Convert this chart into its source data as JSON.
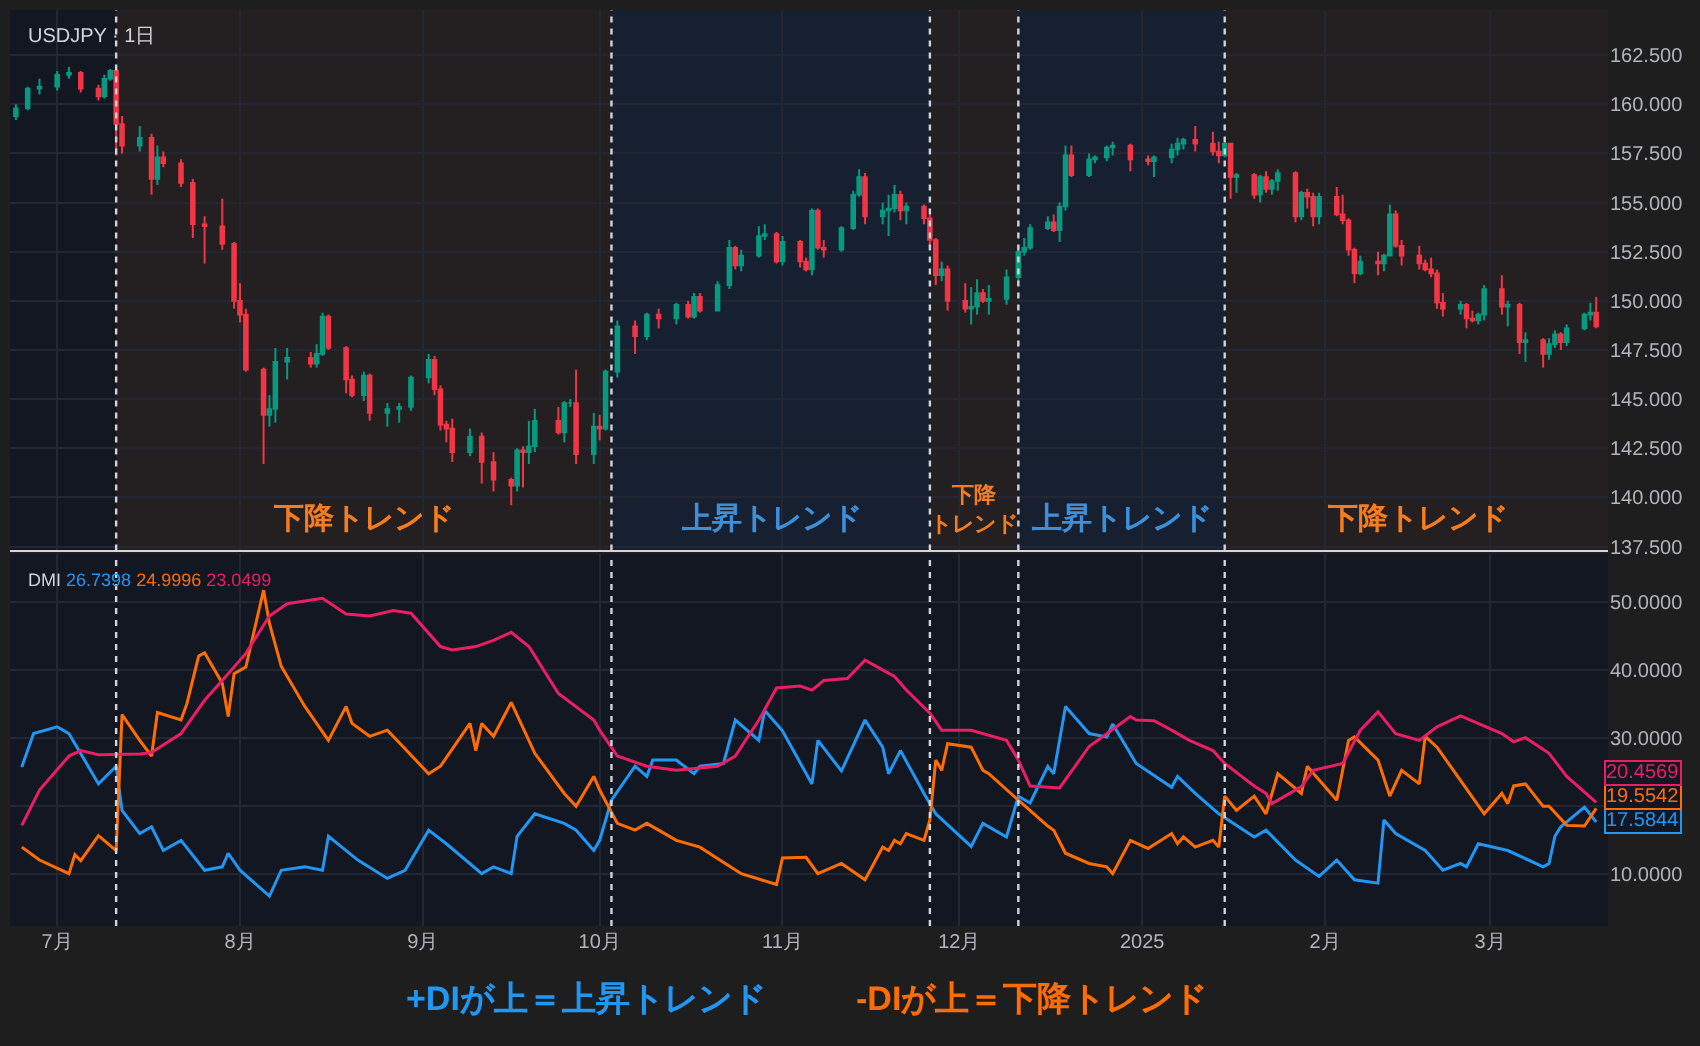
{
  "chart_data": [
    {
      "type": "candlestick",
      "title": "USDJPY · 1日",
      "tick_labels": "y",
      "grid": true,
      "colors": [
        "#089981",
        "#089981",
        "#089981",
        "#089981",
        "#089981",
        "#f23645",
        "#f23645",
        "#089981",
        "#089981",
        "#f23645",
        "#f23645",
        "#089981",
        "#f23645",
        "#089981",
        "#f23645",
        "#f23645",
        "#f23645",
        "#f23645",
        "#f23645",
        "#f23645",
        "#f23645",
        "#f23645",
        "#f23645",
        "#089981",
        "#089981",
        "#089981",
        "#f23645",
        "#089981",
        "#089981",
        "#f23645",
        "#f23645",
        "#f23645",
        "#089981",
        "#f23645",
        "#089981",
        "#089981",
        "#089981",
        "#089981",
        "#f23645",
        "#f23645",
        "#f23645",
        "#f23645",
        "#089981",
        "#f23645",
        "#f23645",
        "#f23645",
        "#089981",
        "#f23645",
        "#089981",
        "#089981",
        "#f23645",
        "#089981",
        "#089981",
        "#f23645",
        "#089981",
        "#f23645",
        "#089981",
        "#089981",
        "#f23645",
        "#089981",
        "#f23645",
        "#089981",
        "#f23645",
        "#089981",
        "#f23645",
        "#089981",
        "#089981",
        "#f23645",
        "#089981",
        "#089981",
        "#089981",
        "#f23645",
        "#089981",
        "#f23645",
        "#f23645",
        "#089981",
        "#f23645",
        "#f23645",
        "#089981",
        "#089981",
        "#089981",
        "#f23645",
        "#089981",
        "#089981",
        "#089981",
        "#f23645",
        "#089981",
        "#f23645",
        "#f23645",
        "#f23645",
        "#089981",
        "#f23645",
        "#f23645",
        "#089981",
        "#089981",
        "#f23645",
        "#089981",
        "#089981",
        "#089981",
        "#089981",
        "#089981",
        "#089981",
        "#f23645",
        "#089981",
        "#089981",
        "#f23645",
        "#089981",
        "#089981",
        "#089981",
        "#089981",
        "#f23645",
        "#f23645",
        "#089981",
        "#089981",
        "#089981",
        "#089981",
        "#f23645",
        "#f23645",
        "#f23645",
        "#089981",
        "#f23645",
        "#089981",
        "#f23645",
        "#089981",
        "#f23645",
        "#089981",
        "#089981",
        "#f23645",
        "#089981",
        "#f23645",
        "#f23645",
        "#089981",
        "#f23645",
        "#f23645",
        "#f23645",
        "#f23645",
        "#089981",
        "#f23645",
        "#089981",
        "#089981",
        "#f23645",
        "#f23645",
        "#f23645",
        "#f23645",
        "#f23645",
        "#f23645",
        "#f23645",
        "#089981",
        "#f23645",
        "#f23645",
        "#089981",
        "#089981",
        "#f23645",
        "#089981",
        "#f23645",
        "#089981",
        "#f23645",
        "#089981",
        "#089981",
        "#f23645",
        "#089981",
        "#089981",
        "#089981",
        "#f23645"
      ],
      "xlim": [
        "2024-06-23",
        "2025-03-21"
      ],
      "xticks": [
        {
          "value": "2024-07-01",
          "label": null
        },
        {
          "value": "2024-08-01",
          "label": null
        },
        {
          "value": "2024-09-01",
          "label": null
        },
        {
          "value": "2024-10-01",
          "label": null
        },
        {
          "value": "2024-11-01",
          "label": null
        },
        {
          "value": "2024-12-01",
          "label": null
        },
        {
          "value": "2025-01-01",
          "label": null
        },
        {
          "value": "2025-02-01",
          "label": null
        },
        {
          "value": "2025-03-01",
          "label": null
        }
      ],
      "ylim": [
        137.3,
        164.8
      ],
      "yticks": [
        {
          "value": 137.5,
          "label": "137.500"
        },
        {
          "value": 140,
          "label": "140.000"
        },
        {
          "value": 142.5,
          "label": "142.500"
        },
        {
          "value": 145,
          "label": "145.000"
        },
        {
          "value": 147.5,
          "label": "147.500"
        },
        {
          "value": 150,
          "label": "150.000"
        },
        {
          "value": 152.5,
          "label": "152.500"
        },
        {
          "value": 155,
          "label": "155.000"
        },
        {
          "value": 157.5,
          "label": "157.500"
        },
        {
          "value": 160,
          "label": "160.000"
        },
        {
          "value": 162.5,
          "label": "162.500"
        }
      ],
      "x": [
        "2024-06-24",
        "2024-06-26",
        "2024-06-28",
        "2024-07-01",
        "2024-07-03",
        "2024-07-05",
        "2024-07-08",
        "2024-07-09",
        "2024-07-10",
        "2024-07-11",
        "2024-07-12",
        "2024-07-15",
        "2024-07-17",
        "2024-07-18",
        "2024-07-19",
        "2024-07-22",
        "2024-07-24",
        "2024-07-26",
        "2024-07-29",
        "2024-07-31",
        "2024-08-01",
        "2024-08-02",
        "2024-08-05",
        "2024-08-06",
        "2024-08-07",
        "2024-08-09",
        "2024-08-13",
        "2024-08-14",
        "2024-08-15",
        "2024-08-16",
        "2024-08-19",
        "2024-08-20",
        "2024-08-22",
        "2024-08-23",
        "2024-08-26",
        "2024-08-28",
        "2024-08-30",
        "2024-09-02",
        "2024-09-03",
        "2024-09-04",
        "2024-09-05",
        "2024-09-06",
        "2024-09-09",
        "2024-09-11",
        "2024-09-13",
        "2024-09-16",
        "2024-09-17",
        "2024-09-18",
        "2024-09-19",
        "2024-09-20",
        "2024-09-24",
        "2024-09-25",
        "2024-09-26",
        "2024-09-27",
        "2024-09-30",
        "2024-10-01",
        "2024-10-02",
        "2024-10-04",
        "2024-10-07",
        "2024-10-09",
        "2024-10-11",
        "2024-10-14",
        "2024-10-16",
        "2024-10-17",
        "2024-10-18",
        "2024-10-21",
        "2024-10-23",
        "2024-10-24",
        "2024-10-25",
        "2024-10-28",
        "2024-10-29",
        "2024-10-31",
        "2024-11-01",
        "2024-11-04",
        "2024-11-05",
        "2024-11-06",
        "2024-11-07",
        "2024-11-08",
        "2024-11-11",
        "2024-11-13",
        "2024-11-14",
        "2024-11-15",
        "2024-11-18",
        "2024-11-19",
        "2024-11-20",
        "2024-11-21",
        "2024-11-22",
        "2024-11-25",
        "2024-11-26",
        "2024-11-27",
        "2024-11-28",
        "2024-11-29",
        "2024-12-02",
        "2024-12-03",
        "2024-12-04",
        "2024-12-05",
        "2024-12-06",
        "2024-12-09",
        "2024-12-11",
        "2024-12-12",
        "2024-12-13",
        "2024-12-16",
        "2024-12-17",
        "2024-12-18",
        "2024-12-19",
        "2024-12-20",
        "2024-12-23",
        "2024-12-24",
        "2024-12-26",
        "2024-12-27",
        "2024-12-30",
        "2025-01-02",
        "2025-01-03",
        "2025-01-06",
        "2025-01-07",
        "2025-01-08",
        "2025-01-10",
        "2025-01-13",
        "2025-01-14",
        "2025-01-15",
        "2025-01-16",
        "2025-01-17",
        "2025-01-20",
        "2025-01-21",
        "2025-01-22",
        "2025-01-23",
        "2025-01-24",
        "2025-01-27",
        "2025-01-28",
        "2025-01-29",
        "2025-01-30",
        "2025-01-31",
        "2025-02-03",
        "2025-02-04",
        "2025-02-05",
        "2025-02-06",
        "2025-02-07",
        "2025-02-10",
        "2025-02-11",
        "2025-02-12",
        "2025-02-13",
        "2025-02-14",
        "2025-02-17",
        "2025-02-18",
        "2025-02-19",
        "2025-02-20",
        "2025-02-21",
        "2025-02-24",
        "2025-02-25",
        "2025-02-26",
        "2025-02-27",
        "2025-02-28",
        "2025-03-03",
        "2025-03-04",
        "2025-03-06",
        "2025-03-07",
        "2025-03-10",
        "2025-03-11",
        "2025-03-12",
        "2025-03-13",
        "2025-03-14",
        "2025-03-17",
        "2025-03-18",
        "2025-03-19"
      ],
      "ohlc": [
        [
          159.4,
          160.0,
          159.2,
          159.8
        ],
        [
          159.8,
          160.9,
          159.7,
          160.8
        ],
        [
          160.8,
          161.3,
          160.5,
          160.9
        ],
        [
          160.9,
          161.7,
          160.7,
          161.5
        ],
        [
          161.5,
          161.9,
          161.3,
          161.6
        ],
        [
          161.6,
          161.7,
          160.6,
          160.8
        ],
        [
          160.8,
          161.0,
          160.2,
          160.4
        ],
        [
          160.4,
          161.5,
          160.3,
          161.3
        ],
        [
          161.3,
          161.8,
          161.2,
          161.7
        ],
        [
          161.7,
          161.8,
          157.4,
          159.0
        ],
        [
          159.0,
          159.4,
          157.5,
          157.9
        ],
        [
          157.9,
          158.9,
          157.6,
          158.3
        ],
        [
          158.3,
          158.5,
          155.4,
          156.2
        ],
        [
          156.2,
          157.9,
          155.9,
          157.3
        ],
        [
          157.3,
          157.6,
          156.8,
          157.0
        ],
        [
          157.0,
          157.2,
          155.8,
          156.0
        ],
        [
          156.0,
          156.2,
          153.2,
          153.9
        ],
        [
          153.9,
          154.3,
          151.9,
          153.8
        ],
        [
          153.8,
          155.2,
          152.6,
          152.9
        ],
        [
          152.9,
          153.0,
          149.6,
          150.0
        ],
        [
          150.0,
          150.9,
          148.9,
          149.3
        ],
        [
          149.3,
          149.6,
          146.4,
          146.5
        ],
        [
          146.5,
          146.6,
          141.7,
          144.2
        ],
        [
          144.2,
          145.2,
          143.6,
          144.5
        ],
        [
          144.5,
          147.6,
          143.8,
          146.9
        ],
        [
          146.9,
          147.6,
          146.0,
          147.1
        ],
        [
          147.1,
          147.4,
          146.6,
          146.8
        ],
        [
          146.8,
          147.8,
          146.6,
          147.3
        ],
        [
          147.3,
          149.4,
          147.2,
          149.2
        ],
        [
          149.2,
          149.3,
          147.5,
          147.6
        ],
        [
          147.6,
          147.7,
          145.3,
          146.0
        ],
        [
          146.0,
          146.2,
          145.1,
          145.2
        ],
        [
          145.2,
          146.4,
          144.9,
          146.2
        ],
        [
          146.2,
          146.3,
          143.9,
          144.3
        ],
        [
          144.3,
          144.8,
          143.6,
          144.5
        ],
        [
          144.5,
          144.8,
          143.8,
          144.6
        ],
        [
          144.6,
          146.2,
          144.4,
          146.1
        ],
        [
          146.1,
          147.3,
          145.8,
          147.0
        ],
        [
          147.0,
          147.2,
          145.2,
          145.5
        ],
        [
          145.5,
          145.7,
          143.4,
          143.7
        ],
        [
          143.7,
          143.9,
          142.8,
          143.5
        ],
        [
          143.5,
          144.0,
          141.8,
          142.3
        ],
        [
          142.3,
          143.5,
          142.1,
          143.1
        ],
        [
          143.1,
          143.3,
          140.7,
          141.8
        ],
        [
          141.8,
          142.3,
          140.3,
          140.9
        ],
        [
          140.9,
          141.0,
          139.6,
          140.6
        ],
        [
          140.6,
          142.5,
          140.3,
          142.4
        ],
        [
          142.4,
          142.6,
          140.5,
          142.3
        ],
        [
          142.3,
          143.9,
          141.7,
          142.6
        ],
        [
          142.6,
          144.5,
          142.3,
          143.9
        ],
        [
          143.9,
          144.6,
          143.2,
          143.3
        ],
        [
          143.3,
          144.9,
          142.8,
          144.8
        ],
        [
          144.8,
          145.0,
          144.6,
          144.8
        ],
        [
          144.8,
          146.5,
          141.7,
          142.2
        ],
        [
          142.2,
          144.3,
          141.7,
          143.6
        ],
        [
          143.6,
          144.2,
          142.9,
          143.5
        ],
        [
          143.5,
          146.5,
          143.4,
          146.4
        ],
        [
          146.4,
          149.0,
          146.1,
          148.7
        ],
        [
          148.7,
          149.0,
          147.3,
          148.2
        ],
        [
          148.2,
          149.4,
          148.0,
          149.3
        ],
        [
          149.3,
          149.6,
          148.6,
          149.1
        ],
        [
          149.1,
          149.9,
          148.8,
          149.8
        ],
        [
          149.8,
          150.0,
          149.1,
          149.2
        ],
        [
          149.2,
          150.4,
          149.1,
          150.2
        ],
        [
          150.2,
          150.4,
          149.4,
          149.5
        ],
        [
          149.5,
          151.0,
          149.5,
          150.8
        ],
        [
          150.8,
          153.1,
          150.6,
          152.7
        ],
        [
          152.7,
          152.8,
          151.6,
          151.8
        ],
        [
          151.8,
          152.6,
          151.5,
          152.3
        ],
        [
          152.3,
          153.8,
          152.2,
          153.3
        ],
        [
          153.3,
          153.9,
          153.1,
          153.4
        ],
        [
          153.4,
          153.5,
          151.9,
          152.0
        ],
        [
          152.0,
          153.3,
          151.8,
          153.0
        ],
        [
          153.0,
          153.1,
          151.7,
          152.0
        ],
        [
          152.0,
          152.2,
          151.5,
          151.6
        ],
        [
          151.6,
          154.7,
          151.3,
          154.6
        ],
        [
          154.6,
          154.7,
          152.6,
          152.7
        ],
        [
          152.7,
          153.1,
          152.2,
          152.6
        ],
        [
          152.6,
          153.8,
          152.5,
          153.7
        ],
        [
          153.7,
          155.6,
          153.6,
          155.4
        ],
        [
          155.4,
          156.7,
          155.3,
          156.3
        ],
        [
          156.3,
          156.5,
          153.9,
          154.3
        ],
        [
          154.3,
          155.0,
          153.9,
          154.6
        ],
        [
          154.6,
          155.4,
          153.3,
          154.7
        ],
        [
          154.7,
          155.9,
          154.5,
          155.4
        ],
        [
          155.4,
          155.6,
          154.1,
          154.6
        ],
        [
          154.6,
          155.0,
          153.9,
          154.8
        ],
        [
          154.8,
          154.9,
          153.9,
          154.2
        ],
        [
          154.2,
          154.4,
          152.7,
          153.1
        ],
        [
          153.1,
          153.2,
          150.8,
          151.3
        ],
        [
          151.3,
          152.0,
          151.0,
          151.6
        ],
        [
          151.6,
          151.8,
          149.5,
          150.0
        ],
        [
          150.0,
          150.9,
          149.4,
          149.6
        ],
        [
          149.6,
          150.7,
          148.8,
          149.7
        ],
        [
          149.7,
          151.1,
          149.3,
          150.4
        ],
        [
          150.4,
          150.6,
          149.9,
          150.0
        ],
        [
          150.0,
          150.8,
          149.3,
          150.1
        ],
        [
          150.1,
          151.6,
          149.8,
          151.2
        ],
        [
          151.2,
          152.6,
          150.9,
          152.5
        ],
        [
          152.5,
          153.2,
          152.3,
          152.7
        ],
        [
          152.7,
          153.9,
          152.6,
          153.7
        ],
        [
          153.7,
          154.3,
          153.6,
          154.0
        ],
        [
          154.0,
          154.4,
          153.5,
          153.6
        ],
        [
          153.6,
          155.0,
          153.0,
          154.8
        ],
        [
          154.8,
          157.9,
          154.6,
          157.4
        ],
        [
          157.4,
          157.9,
          156.3,
          156.4
        ],
        [
          156.4,
          157.5,
          156.3,
          157.2
        ],
        [
          157.2,
          157.4,
          157.0,
          157.3
        ],
        [
          157.3,
          157.9,
          157.1,
          157.8
        ],
        [
          157.8,
          158.1,
          157.4,
          157.9
        ],
        [
          157.9,
          158.0,
          156.6,
          157.2
        ],
        [
          157.2,
          157.4,
          156.9,
          157.1
        ],
        [
          157.1,
          157.4,
          156.3,
          157.3
        ],
        [
          157.3,
          158.0,
          157.0,
          157.7
        ],
        [
          157.7,
          158.3,
          157.4,
          158.0
        ],
        [
          158.0,
          158.3,
          157.7,
          158.2
        ],
        [
          158.2,
          158.9,
          157.6,
          158.0
        ],
        [
          158.0,
          158.6,
          157.4,
          157.6
        ],
        [
          157.6,
          158.1,
          157.0,
          157.4
        ],
        [
          157.4,
          158.0,
          157.3,
          158.0
        ],
        [
          158.0,
          158.0,
          155.2,
          156.3
        ],
        [
          156.3,
          156.5,
          155.5,
          156.4
        ],
        [
          156.4,
          156.5,
          155.2,
          155.4
        ],
        [
          155.4,
          156.4,
          155.0,
          156.3
        ],
        [
          156.3,
          156.6,
          155.5,
          155.7
        ],
        [
          155.7,
          156.2,
          155.4,
          156.1
        ],
        [
          156.1,
          156.7,
          155.6,
          156.5
        ],
        [
          156.5,
          156.6,
          154.0,
          154.3
        ],
        [
          154.3,
          155.6,
          154.1,
          155.5
        ],
        [
          155.5,
          155.7,
          154.7,
          155.3
        ],
        [
          155.3,
          155.5,
          153.8,
          154.3
        ],
        [
          154.3,
          155.5,
          153.9,
          155.3
        ],
        [
          155.3,
          155.8,
          154.3,
          154.4
        ],
        [
          154.4,
          155.4,
          153.9,
          154.1
        ],
        [
          154.1,
          154.2,
          152.3,
          152.6
        ],
        [
          152.6,
          152.7,
          150.9,
          151.4
        ],
        [
          151.4,
          152.3,
          151.3,
          152.0
        ],
        [
          152.0,
          152.5,
          151.3,
          151.9
        ],
        [
          151.9,
          152.4,
          151.5,
          152.3
        ],
        [
          152.3,
          154.9,
          152.3,
          154.4
        ],
        [
          154.4,
          154.6,
          152.7,
          152.8
        ],
        [
          152.8,
          153.1,
          151.8,
          152.3
        ],
        [
          152.3,
          152.8,
          151.6,
          151.9
        ],
        [
          151.9,
          152.1,
          151.5,
          151.6
        ],
        [
          151.6,
          152.2,
          151.2,
          151.4
        ],
        [
          151.4,
          151.6,
          149.6,
          149.9
        ],
        [
          149.9,
          150.4,
          149.2,
          149.6
        ],
        [
          149.6,
          150.0,
          149.3,
          149.8
        ],
        [
          149.8,
          149.9,
          148.6,
          149.1
        ],
        [
          149.1,
          149.5,
          148.9,
          149.0
        ],
        [
          149.0,
          149.4,
          148.8,
          149.3
        ],
        [
          149.3,
          150.8,
          149.0,
          150.6
        ],
        [
          150.6,
          151.3,
          149.3,
          149.7
        ],
        [
          149.7,
          150.0,
          148.7,
          149.8
        ],
        [
          149.8,
          149.9,
          147.3,
          147.9
        ],
        [
          147.9,
          148.4,
          146.9,
          148.0
        ],
        [
          148.0,
          148.1,
          146.6,
          147.3
        ],
        [
          147.3,
          148.1,
          147.0,
          147.8
        ],
        [
          147.8,
          148.5,
          147.6,
          148.3
        ],
        [
          148.3,
          148.4,
          147.5,
          147.9
        ],
        [
          147.9,
          148.8,
          147.7,
          148.6
        ],
        [
          148.6,
          149.4,
          148.5,
          149.3
        ],
        [
          149.3,
          149.9,
          149.0,
          149.4
        ],
        [
          149.4,
          150.2,
          148.6,
          148.7
        ]
      ],
      "ref_lines": [
        {
          "axis": "x",
          "value": "2024-07-11",
          "color": "#d1d4dc",
          "line_style": "dotted"
        },
        {
          "axis": "x",
          "value": "2024-10-03",
          "color": "#d1d4dc",
          "line_style": "dotted"
        },
        {
          "axis": "x",
          "value": "2024-11-26",
          "color": "#d1d4dc",
          "line_style": "dotted"
        },
        {
          "axis": "x",
          "value": "2024-12-11",
          "color": "#d1d4dc",
          "line_style": "dotted"
        },
        {
          "axis": "x",
          "value": "2025-01-15",
          "color": "#d1d4dc",
          "line_style": "dotted"
        }
      ],
      "bands": [
        {
          "axis": "x",
          "from": "2024-07-11",
          "to": "2024-10-03",
          "label": "下降トレンド",
          "color": "#f57c1f"
        },
        {
          "axis": "x",
          "from": "2024-10-03",
          "to": "2024-11-26",
          "label": "上昇トレンド",
          "color": "#3d8fd9"
        },
        {
          "axis": "x",
          "from": "2024-11-26",
          "to": "2024-12-11",
          "label": "下降トレンド",
          "color": "#f57c1f"
        },
        {
          "axis": "x",
          "from": "2024-12-11",
          "to": "2025-01-15",
          "label": "上昇トレンド",
          "color": "#3d8fd9"
        },
        {
          "axis": "x",
          "from": "2025-01-15",
          "to": "2025-03-21",
          "label": "下降トレンド",
          "color": "#f57c1f"
        }
      ]
    },
    {
      "type": "line",
      "title": "DMI",
      "grid": true,
      "marker": "none",
      "line_style": "solid",
      "xlim": [
        "2024-06-23",
        "2025-03-21"
      ],
      "xticks": [
        {
          "value": "2024-07-01",
          "label": "7月"
        },
        {
          "value": "2024-08-01",
          "label": "8月"
        },
        {
          "value": "2024-09-01",
          "label": "9月"
        },
        {
          "value": "2024-10-01",
          "label": "10月"
        },
        {
          "value": "2024-11-01",
          "label": "11月"
        },
        {
          "value": "2024-12-01",
          "label": "12月"
        },
        {
          "value": "2025-01-01",
          "label": "2025"
        },
        {
          "value": "2025-02-01",
          "label": "2月"
        },
        {
          "value": "2025-03-01",
          "label": "3月"
        }
      ],
      "ylim": [
        2.3,
        57.0
      ],
      "yticks": [
        {
          "value": 10,
          "label": "10.0000"
        },
        {
          "value": 20,
          "label": null
        },
        {
          "value": 30,
          "label": "30.0000"
        },
        {
          "value": 40,
          "label": "40.0000"
        },
        {
          "value": 50,
          "label": "50.0000"
        }
      ],
      "series": [
        {
          "color": "#2196f3",
          "x": [
            "2024-06-25",
            "2024-06-27",
            "2024-07-01",
            "2024-07-03",
            "2024-07-07",
            "2024-07-08",
            "2024-07-11",
            "2024-07-12",
            "2024-07-15",
            "2024-07-17",
            "2024-07-19",
            "2024-07-22",
            "2024-07-26",
            "2024-07-29",
            "2024-07-30",
            "2024-08-01",
            "2024-08-06",
            "2024-08-08",
            "2024-08-12",
            "2024-08-15",
            "2024-08-16",
            "2024-08-21",
            "2024-08-26",
            "2024-08-29",
            "2024-09-02",
            "2024-09-05",
            "2024-09-11",
            "2024-09-13",
            "2024-09-16",
            "2024-09-17",
            "2024-09-20",
            "2024-09-25",
            "2024-09-27",
            "2024-09-30",
            "2024-10-01",
            "2024-10-03",
            "2024-10-07",
            "2024-10-09",
            "2024-10-10",
            "2024-10-14",
            "2024-10-17",
            "2024-10-18",
            "2024-10-22",
            "2024-10-24",
            "2024-10-28",
            "2024-10-29",
            "2024-11-01",
            "2024-11-06",
            "2024-11-07",
            "2024-11-11",
            "2024-11-15",
            "2024-11-18",
            "2024-11-19",
            "2024-11-21",
            "2024-11-25",
            "2024-11-27",
            "2024-12-03",
            "2024-12-05",
            "2024-12-09",
            "2024-12-11",
            "2024-12-13",
            "2024-12-16",
            "2024-12-17",
            "2024-12-19",
            "2024-12-23",
            "2024-12-26",
            "2024-12-27",
            "2024-12-31",
            "2025-01-06",
            "2025-01-07",
            "2025-01-10",
            "2025-01-14",
            "2025-01-20",
            "2025-01-22",
            "2025-01-27",
            "2025-01-31",
            "2025-02-03",
            "2025-02-06",
            "2025-02-10",
            "2025-02-11",
            "2025-02-13",
            "2025-02-18",
            "2025-02-21",
            "2025-02-24",
            "2025-02-25",
            "2025-02-27",
            "2025-03-04",
            "2025-03-10",
            "2025-03-11",
            "2025-03-12",
            "2025-03-13",
            "2025-03-17",
            "2025-03-19"
          ],
          "values": [
            25.7,
            30.6,
            31.6,
            30.6,
            24.7,
            23.2,
            25.8,
            19.3,
            15.9,
            16.9,
            13.4,
            14.9,
            10.5,
            11.0,
            13.0,
            10.5,
            6.7,
            10.5,
            11.0,
            10.5,
            15.5,
            12.0,
            9.3,
            10.5,
            16.4,
            14.4,
            10.0,
            11.0,
            10.0,
            15.5,
            18.8,
            17.4,
            16.4,
            13.4,
            14.9,
            20.8,
            25.8,
            24.3,
            26.7,
            26.7,
            24.7,
            25.8,
            26.2,
            32.6,
            29.6,
            34.0,
            31.0,
            23.2,
            29.6,
            25.1,
            32.6,
            28.6,
            24.7,
            28.1,
            21.8,
            18.8,
            14.0,
            17.4,
            15.4,
            21.4,
            20.4,
            25.8,
            24.7,
            34.6,
            30.6,
            30.1,
            32.0,
            26.2,
            22.7,
            24.3,
            21.8,
            18.8,
            15.4,
            16.4,
            12.0,
            9.6,
            12.0,
            9.1,
            8.6,
            17.9,
            15.9,
            13.4,
            10.5,
            11.5,
            11.0,
            14.4,
            13.4,
            11.0,
            11.5,
            15.5,
            16.9,
            19.8,
            17.6
          ]
        },
        {
          "color": "#ff6d00",
          "x": [
            "2024-06-25",
            "2024-06-28",
            "2024-07-03",
            "2024-07-04",
            "2024-07-05",
            "2024-07-08",
            "2024-07-11",
            "2024-07-12",
            "2024-07-15",
            "2024-07-17",
            "2024-07-18",
            "2024-07-22",
            "2024-07-23",
            "2024-07-25",
            "2024-07-26",
            "2024-07-29",
            "2024-07-30",
            "2024-07-31",
            "2024-08-02",
            "2024-08-05",
            "2024-08-06",
            "2024-08-08",
            "2024-08-12",
            "2024-08-16",
            "2024-08-19",
            "2024-08-20",
            "2024-08-23",
            "2024-08-26",
            "2024-09-02",
            "2024-09-04",
            "2024-09-09",
            "2024-09-10",
            "2024-09-11",
            "2024-09-13",
            "2024-09-16",
            "2024-09-20",
            "2024-09-25",
            "2024-09-27",
            "2024-09-30",
            "2024-10-01",
            "2024-10-04",
            "2024-10-07",
            "2024-10-09",
            "2024-10-14",
            "2024-10-18",
            "2024-10-25",
            "2024-10-31",
            "2024-11-01",
            "2024-11-05",
            "2024-11-07",
            "2024-11-11",
            "2024-11-15",
            "2024-11-18",
            "2024-11-19",
            "2024-11-20",
            "2024-11-21",
            "2024-11-22",
            "2024-11-25",
            "2024-11-26",
            "2024-11-27",
            "2024-11-28",
            "2024-11-29",
            "2024-12-03",
            "2024-12-05",
            "2024-12-06",
            "2024-12-11",
            "2024-12-16",
            "2024-12-17",
            "2024-12-19",
            "2024-12-23",
            "2024-12-26",
            "2024-12-27",
            "2024-12-30",
            "2025-01-02",
            "2025-01-06",
            "2025-01-07",
            "2025-01-08",
            "2025-01-10",
            "2025-01-13",
            "2025-01-14",
            "2025-01-15",
            "2025-01-17",
            "2025-01-20",
            "2025-01-22",
            "2025-01-24",
            "2025-01-28",
            "2025-01-29",
            "2025-02-03",
            "2025-02-05",
            "2025-02-06",
            "2025-02-10",
            "2025-02-12",
            "2025-02-14",
            "2025-02-17",
            "2025-02-18",
            "2025-02-20",
            "2025-02-28",
            "2025-03-03",
            "2025-03-04",
            "2025-03-05",
            "2025-03-07",
            "2025-03-10",
            "2025-03-11",
            "2025-03-14",
            "2025-03-17",
            "2025-03-19"
          ],
          "values": [
            13.9,
            12.0,
            10.0,
            12.8,
            11.9,
            15.6,
            13.4,
            33.4,
            29.6,
            27.3,
            33.7,
            32.6,
            35.0,
            42.0,
            42.5,
            38.0,
            33.1,
            39.4,
            40.4,
            51.7,
            46.8,
            40.5,
            34.6,
            29.6,
            34.6,
            32.1,
            30.2,
            31.1,
            24.7,
            25.8,
            32.1,
            28.1,
            32.1,
            30.2,
            35.2,
            27.7,
            21.8,
            19.9,
            24.3,
            22.3,
            17.4,
            16.4,
            17.4,
            14.9,
            13.9,
            10.0,
            8.4,
            12.3,
            12.4,
            10.0,
            11.5,
            9.1,
            13.9,
            13.4,
            14.9,
            14.4,
            15.9,
            14.9,
            17.9,
            26.7,
            25.2,
            29.1,
            28.6,
            25.2,
            24.7,
            20.8,
            17.0,
            16.4,
            13.0,
            11.5,
            11.0,
            10.0,
            14.9,
            13.7,
            15.9,
            14.4,
            15.4,
            13.9,
            14.9,
            13.9,
            21.4,
            19.3,
            21.4,
            18.8,
            24.7,
            21.8,
            25.8,
            20.8,
            29.6,
            30.1,
            26.7,
            21.4,
            25.2,
            23.2,
            30.2,
            28.6,
            18.8,
            21.8,
            20.3,
            22.9,
            23.2,
            19.9,
            19.9,
            17.1,
            17.0,
            19.6
          ]
        },
        {
          "color": "#e91e63",
          "x": [
            "2024-06-25",
            "2024-06-28",
            "2024-07-03",
            "2024-07-05",
            "2024-07-08",
            "2024-07-15",
            "2024-07-17",
            "2024-07-22",
            "2024-07-26",
            "2024-07-30",
            "2024-08-02",
            "2024-08-06",
            "2024-08-09",
            "2024-08-15",
            "2024-08-19",
            "2024-08-23",
            "2024-08-27",
            "2024-08-30",
            "2024-09-04",
            "2024-09-06",
            "2024-09-10",
            "2024-09-13",
            "2024-09-16",
            "2024-09-19",
            "2024-09-24",
            "2024-09-30",
            "2024-10-01",
            "2024-10-04",
            "2024-10-09",
            "2024-10-14",
            "2024-10-21",
            "2024-10-24",
            "2024-10-28",
            "2024-10-31",
            "2024-11-04",
            "2024-11-06",
            "2024-11-08",
            "2024-11-12",
            "2024-11-15",
            "2024-11-20",
            "2024-11-22",
            "2024-11-26",
            "2024-11-28",
            "2024-12-03",
            "2024-12-09",
            "2024-12-11",
            "2024-12-13",
            "2024-12-18",
            "2024-12-23",
            "2024-12-30",
            "2024-12-31",
            "2025-01-03",
            "2025-01-06",
            "2025-01-09",
            "2025-01-13",
            "2025-01-15",
            "2025-01-20",
            "2025-01-22",
            "2025-01-23",
            "2025-01-28",
            "2025-01-30",
            "2025-02-04",
            "2025-02-07",
            "2025-02-10",
            "2025-02-13",
            "2025-02-17",
            "2025-02-20",
            "2025-02-24",
            "2025-03-03",
            "2025-03-05",
            "2025-03-07",
            "2025-03-11",
            "2025-03-14",
            "2025-03-19"
          ],
          "values": [
            17.1,
            22.3,
            27.3,
            28.1,
            27.5,
            27.6,
            27.8,
            30.6,
            35.5,
            39.4,
            42.4,
            47.9,
            49.7,
            50.5,
            48.2,
            47.9,
            48.7,
            48.3,
            43.4,
            42.9,
            43.4,
            44.3,
            45.5,
            43.4,
            36.5,
            32.6,
            31.1,
            27.3,
            25.8,
            25.2,
            25.8,
            27.3,
            32.6,
            37.3,
            37.6,
            37.0,
            38.4,
            38.7,
            41.4,
            39.0,
            37.0,
            33.6,
            31.1,
            31.1,
            29.6,
            26.7,
            22.9,
            22.6,
            28.7,
            33.1,
            32.6,
            32.5,
            31.1,
            29.6,
            28.1,
            26.2,
            22.9,
            21.8,
            20.3,
            22.8,
            25.2,
            26.2,
            31.1,
            33.8,
            30.6,
            29.6,
            31.6,
            33.2,
            30.6,
            29.4,
            30.0,
            27.7,
            24.3,
            20.5
          ]
        }
      ],
      "ref_lines": [
        {
          "axis": "x",
          "value": "2024-07-11",
          "color": "#d1d4dc",
          "line_style": "dotted"
        },
        {
          "axis": "x",
          "value": "2024-10-03",
          "color": "#d1d4dc",
          "line_style": "dotted"
        },
        {
          "axis": "x",
          "value": "2024-11-26",
          "color": "#d1d4dc",
          "line_style": "dotted"
        },
        {
          "axis": "x",
          "value": "2024-12-11",
          "color": "#d1d4dc",
          "line_style": "dotted"
        },
        {
          "axis": "x",
          "value": "2025-01-15",
          "color": "#d1d4dc",
          "line_style": "dotted"
        }
      ],
      "annotations": [
        "26.7398",
        "24.9996",
        "23.0499",
        {
          "text": "17.5844",
          "x": "2025-03-19",
          "y": 17.6
        },
        {
          "text": "19.5542",
          "x": "2025-03-19",
          "y": 19.6
        },
        {
          "text": "20.4569",
          "x": "2025-03-19",
          "y": 20.5
        },
        "+DIが上＝上昇トレンド",
        "-DIが上＝下降トレンド"
      ]
    }
  ]
}
